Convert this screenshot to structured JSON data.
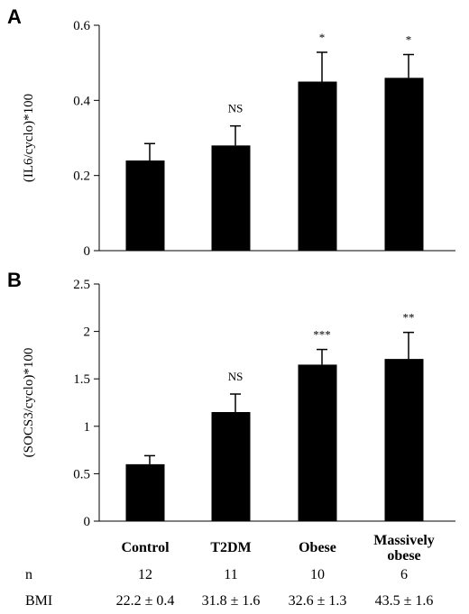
{
  "chart_data": [
    {
      "type": "bar",
      "panel": "A",
      "ylabel": "(IL6/cyclo)*100",
      "ylim": [
        0,
        0.6
      ],
      "yticks": [
        "0",
        "0.2",
        "0.4",
        "0.6"
      ],
      "categories": [
        "Control",
        "T2DM",
        "Obese",
        "Massively obese"
      ],
      "values": [
        0.24,
        0.28,
        0.45,
        0.46
      ],
      "errors": [
        0.045,
        0.052,
        0.078,
        0.062
      ],
      "annotations": [
        "",
        "NS",
        "*",
        "*"
      ]
    },
    {
      "type": "bar",
      "panel": "B",
      "ylabel": "(SOCS3/cyclo)*100",
      "ylim": [
        0,
        2.5
      ],
      "yticks": [
        "0",
        "0.5",
        "1",
        "1.5",
        "2",
        "2.5"
      ],
      "categories": [
        "Control",
        "T2DM",
        "Obese",
        "Massively obese"
      ],
      "values": [
        0.6,
        1.15,
        1.65,
        1.71
      ],
      "errors": [
        0.09,
        0.19,
        0.16,
        0.28
      ],
      "annotations": [
        "",
        "NS",
        "***",
        "**"
      ]
    }
  ],
  "x_labels": [
    [
      "Control"
    ],
    [
      "T2DM"
    ],
    [
      "Obese"
    ],
    [
      "Massively",
      "obese"
    ]
  ],
  "table": {
    "rows": [
      {
        "label": "n",
        "values": [
          "12",
          "11",
          "10",
          "6"
        ]
      },
      {
        "label": "BMI",
        "values": [
          "22.2 ± 0.4",
          "31.8 ± 1.6",
          "32.6 ± 1.3",
          "43.5 ± 1.6"
        ]
      }
    ]
  }
}
